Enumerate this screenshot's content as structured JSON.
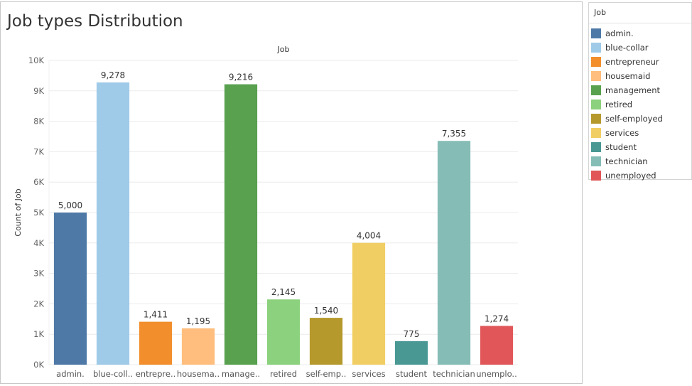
{
  "chart_data": {
    "type": "bar",
    "title": "Job types Distribution",
    "header_label": "Job",
    "xlabel": "",
    "ylabel": "Count of Job",
    "ylim": [
      0,
      10000
    ],
    "yticks": [
      0,
      1000,
      2000,
      3000,
      4000,
      5000,
      6000,
      7000,
      8000,
      9000,
      10000
    ],
    "ytick_labels": [
      "0K",
      "1K",
      "2K",
      "3K",
      "4K",
      "5K",
      "6K",
      "7K",
      "8K",
      "9K",
      "10K"
    ],
    "categories": [
      "admin.",
      "blue-collar",
      "entrepreneur",
      "housemaid",
      "management",
      "retired",
      "self-employed",
      "services",
      "student",
      "technician",
      "unemployed"
    ],
    "category_labels": [
      "admin.",
      "blue-coll..",
      "entrepre..",
      "housema..",
      "manage..",
      "retired",
      "self-emp..",
      "services",
      "student",
      "technician",
      "unemplo.."
    ],
    "values": [
      5000,
      9278,
      1411,
      1195,
      9216,
      2145,
      1540,
      4004,
      775,
      7355,
      1274
    ],
    "value_labels": [
      "5,000",
      "9,278",
      "1,411",
      "1,195",
      "9,216",
      "2,145",
      "1,540",
      "4,004",
      "775",
      "7,355",
      "1,274"
    ],
    "colors": [
      "#4e79a7",
      "#a0cbe8",
      "#f28e2b",
      "#ffbe7d",
      "#59a14f",
      "#8cd17d",
      "#b6992d",
      "#f1ce63",
      "#499894",
      "#86bcb6",
      "#e15759"
    ],
    "grid": true
  },
  "legend": {
    "title": "Job",
    "items": [
      {
        "label": "admin.",
        "color": "#4e79a7"
      },
      {
        "label": "blue-collar",
        "color": "#a0cbe8"
      },
      {
        "label": "entrepreneur",
        "color": "#f28e2b"
      },
      {
        "label": "housemaid",
        "color": "#ffbe7d"
      },
      {
        "label": "management",
        "color": "#59a14f"
      },
      {
        "label": "retired",
        "color": "#8cd17d"
      },
      {
        "label": "self-employed",
        "color": "#b6992d"
      },
      {
        "label": "services",
        "color": "#f1ce63"
      },
      {
        "label": "student",
        "color": "#499894"
      },
      {
        "label": "technician",
        "color": "#86bcb6"
      },
      {
        "label": "unemployed",
        "color": "#e15759"
      }
    ]
  }
}
